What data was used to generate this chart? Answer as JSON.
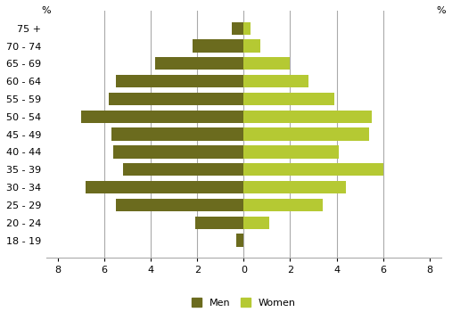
{
  "age_groups": [
    "75 +",
    "70 - 74",
    "65 - 69",
    "60 - 64",
    "55 - 59",
    "50 - 54",
    "45 - 49",
    "40 - 44",
    "35 - 39",
    "30 - 34",
    "25 - 29",
    "20 - 24",
    "18 - 19"
  ],
  "men": [
    -0.5,
    -2.2,
    -3.8,
    -5.5,
    -5.8,
    -7.0,
    -5.7,
    -5.6,
    -5.2,
    -6.8,
    -5.5,
    -2.1,
    -0.3
  ],
  "women": [
    0.3,
    0.7,
    2.0,
    2.8,
    3.9,
    5.5,
    5.4,
    4.1,
    6.0,
    4.4,
    3.4,
    1.1,
    0.0
  ],
  "men_color": "#6b6b1e",
  "women_color": "#b5c933",
  "xlim": [
    -8.5,
    8.5
  ],
  "xticks": [
    -8,
    -6,
    -4,
    -2,
    0,
    2,
    4,
    6,
    8
  ],
  "xticklabels": [
    "8",
    "6",
    "4",
    "2",
    "0",
    "2",
    "4",
    "6",
    "8"
  ],
  "grid_color": "#aaaaaa",
  "background_color": "#ffffff",
  "bar_height": 0.72
}
